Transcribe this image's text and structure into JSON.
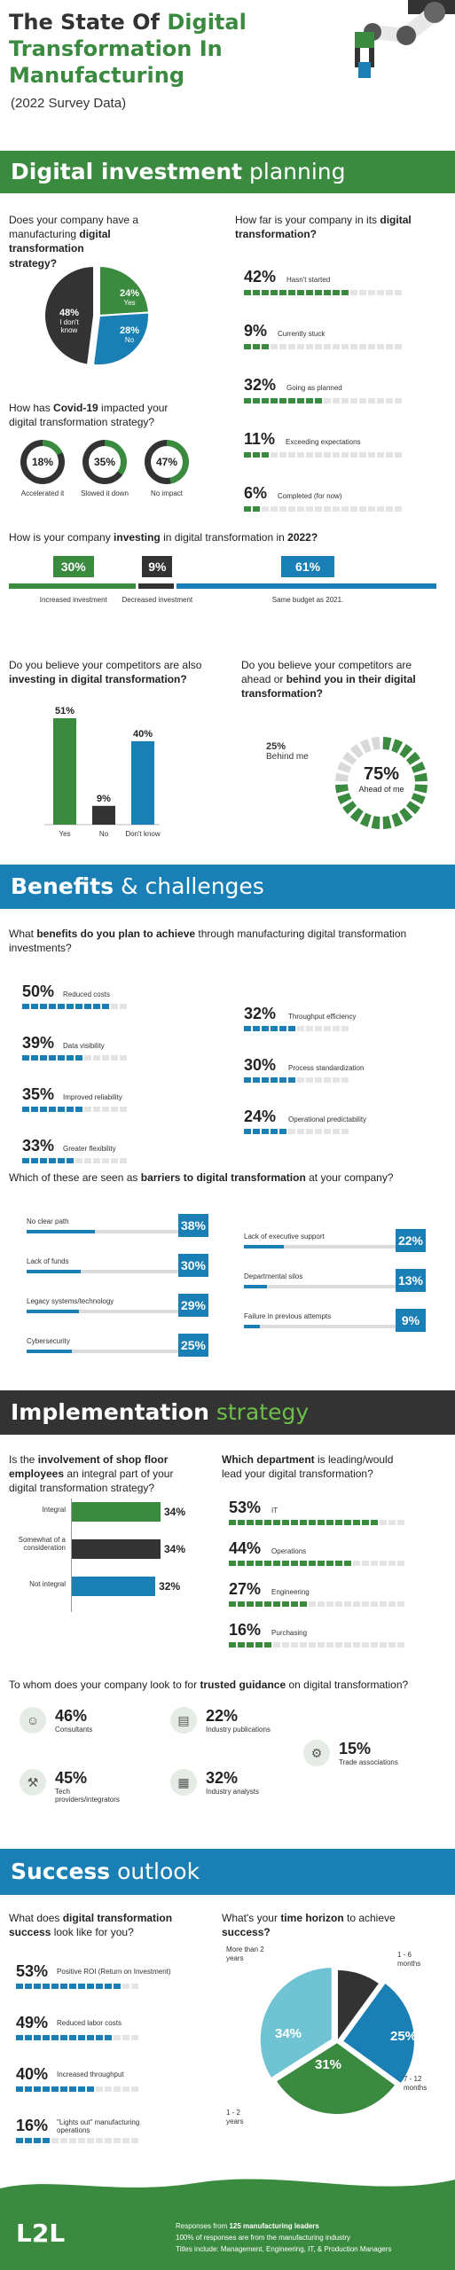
{
  "header": {
    "title_part1": "The State Of ",
    "title_part2": "Digital",
    "title_line2": "Transformation In",
    "title_line3": "Manufacturing",
    "subtitle": "(2022 Survey Data)"
  },
  "sections": {
    "s1_bold": "Digital investment",
    "s1_rest": " planning",
    "s2_bold": "Benefits",
    "s2_rest": " & challenges",
    "s3_bold": "Implementation",
    "s3_rest": " strategy",
    "s4_bold": "Success",
    "s4_rest": " outlook"
  },
  "strategy": {
    "q1": "Does your company have a",
    "q2": "manufacturing ",
    "q2b": "digital transformation",
    "q3": "strategy?",
    "slices": [
      {
        "pct": "24%",
        "label": "Yes",
        "value": 24,
        "color": "#3a8a3f"
      },
      {
        "pct": "28%",
        "label": "No",
        "value": 28,
        "color": "#1a7fb5"
      },
      {
        "pct": "48%",
        "label": "I don't know",
        "value": 48,
        "color": "#333333"
      }
    ]
  },
  "progress": {
    "q1": "How far is your company in its ",
    "q1b": "digital",
    "q2b": "transformation?",
    "items": [
      {
        "pct": "42%",
        "label": "Hasn't started",
        "value": 42
      },
      {
        "pct": "9%",
        "label": "Currently stuck",
        "value": 9
      },
      {
        "pct": "32%",
        "label": "Going as planned",
        "value": 32
      },
      {
        "pct": "11%",
        "label": "Exceeding expectations",
        "value": 11
      },
      {
        "pct": "6%",
        "label": "Completed (for now)",
        "value": 6
      }
    ]
  },
  "covid": {
    "q1": "How has ",
    "q1b": "Covid-19",
    "q1c": " impacted your",
    "q2": "digital transformation strategy?",
    "items": [
      {
        "pct": "18%",
        "label": "Accelerated it",
        "value": 18
      },
      {
        "pct": "35%",
        "label": "Slowed it down",
        "value": 35
      },
      {
        "pct": "47%",
        "label": "No impact",
        "value": 47
      }
    ]
  },
  "investing": {
    "q1": "How is your company ",
    "q1b": "investing",
    "q1c": " in digital transformation in ",
    "q1d": "2022?",
    "items": [
      {
        "pct": "30%",
        "label": "Increased investment",
        "value": 30,
        "color": "#3a8a3f"
      },
      {
        "pct": "9%",
        "label": "Decreased investment",
        "value": 9,
        "color": "#333333"
      },
      {
        "pct": "61%",
        "label": "Same budget as 2021.",
        "value": 61,
        "color": "#1a7fb5"
      }
    ]
  },
  "competitors_invest": {
    "q1": "Do you believe your competitors are also",
    "q2b": "investing in digital transformation?",
    "bars": [
      {
        "pct": "51%",
        "label": "Yes",
        "value": 51,
        "color": "#3a8a3f"
      },
      {
        "pct": "9%",
        "label": "No",
        "value": 9,
        "color": "#333333"
      },
      {
        "pct": "40%",
        "label": "Don't know",
        "value": 40,
        "color": "#1a7fb5"
      }
    ]
  },
  "competitors_ahead": {
    "q1": "Do you believe your competitors are",
    "q2": "ahead or ",
    "q2b": "behind you in their digital",
    "q3b": "transformation?",
    "behind_pct": "25%",
    "behind_label": "Behind  me",
    "behind_value": 25,
    "ahead_pct": "75%",
    "ahead_label": "Ahead of me",
    "ahead_value": 75
  },
  "benefits": {
    "q1": "What ",
    "q1b": "benefits do you plan to achieve",
    "q1c": " through manufacturing digital transformation",
    "q2": "investments?",
    "left": [
      {
        "pct": "50%",
        "label": "Reduced costs",
        "value": 50
      },
      {
        "pct": "39%",
        "label": "Data visibility",
        "value": 39
      },
      {
        "pct": "35%",
        "label": "Improved reliability",
        "value": 35
      },
      {
        "pct": "33%",
        "label": "Greater flexibility",
        "value": 33
      }
    ],
    "right": [
      {
        "pct": "32%",
        "label": "Throughput efficiency",
        "value": 32
      },
      {
        "pct": "30%",
        "label": "Process standardization",
        "value": 30
      },
      {
        "pct": "24%",
        "label": "Operational predictability",
        "value": 24
      }
    ]
  },
  "barriers": {
    "q1": "Which of these are seen as ",
    "q1b": "barriers to digital transformation",
    "q1c": " at your company?",
    "left": [
      {
        "pct": "38%",
        "label": "No clear path",
        "value": 38
      },
      {
        "pct": "30%",
        "label": "Lack of funds",
        "value": 30
      },
      {
        "pct": "29%",
        "label": "Legacy systems/technology",
        "value": 29
      },
      {
        "pct": "25%",
        "label": "Cybersecurity",
        "value": 25
      }
    ],
    "right": [
      {
        "pct": "22%",
        "label": "Lack of executive support",
        "value": 22
      },
      {
        "pct": "13%",
        "label": "Departmental silos",
        "value": 13
      },
      {
        "pct": "9%",
        "label": "Failure in previous attempts",
        "value": 9
      }
    ]
  },
  "shopfloor": {
    "q1": "Is the ",
    "q1b": "involvement of shop floor",
    "q2b": "employees",
    "q2c": " an integral part of your",
    "q3": "digital transformation strategy?",
    "bars": [
      {
        "pct": "34%",
        "label": "Integral",
        "value": 34,
        "color": "#3a8a3f"
      },
      {
        "pct": "34%",
        "label": "Somewhat of a consideration",
        "value": 34,
        "color": "#333333"
      },
      {
        "pct": "32%",
        "label": "Not integral",
        "value": 32,
        "color": "#1a7fb5"
      }
    ]
  },
  "department": {
    "q1b": "Which department",
    "q1c": " is leading/would",
    "q2": "lead your digital transformation?",
    "items": [
      {
        "pct": "53%",
        "label": "IT",
        "value": 53
      },
      {
        "pct": "44%",
        "label": "Operations",
        "value": 44
      },
      {
        "pct": "27%",
        "label": "Engineering",
        "value": 27
      },
      {
        "pct": "16%",
        "label": "Purchasing",
        "value": 16
      }
    ]
  },
  "guidance": {
    "q1": "To whom does your company look to for ",
    "q1b": "trusted guidance",
    "q1c": " on digital transformation?",
    "items": [
      {
        "pct": "46%",
        "label": "Consultants",
        "icon": "consultants-icon",
        "glyph": "☺"
      },
      {
        "pct": "22%",
        "label": "Industry publications",
        "icon": "publications-icon",
        "glyph": "▤"
      },
      {
        "pct": "15%",
        "label": "Trade associations",
        "icon": "associations-icon",
        "glyph": "⚙"
      },
      {
        "pct": "45%",
        "label": "Tech providers/integrators",
        "icon": "tech-providers-icon",
        "glyph": "⚒"
      },
      {
        "pct": "32%",
        "label": "Industry analysts",
        "icon": "analysts-icon",
        "glyph": "▦"
      }
    ]
  },
  "success": {
    "q1": "What does ",
    "q1b": "digital transformation",
    "q2b": "success",
    "q2c": " look like for you?",
    "items": [
      {
        "pct": "53%",
        "label": "Positive ROI (Return on Investment)",
        "value": 53
      },
      {
        "pct": "49%",
        "label": "Reduced labor costs",
        "value": 49
      },
      {
        "pct": "40%",
        "label": "Increased throughput",
        "value": 40
      },
      {
        "pct": "16%",
        "label": "\"Lights out\" manufacturing operations",
        "value": 16
      }
    ]
  },
  "horizon": {
    "q1": "What's your ",
    "q1b": "time horizon",
    "q1c": " to achieve",
    "q2b": "success?",
    "slices": [
      {
        "pct": "10%",
        "label": "1 - 6 months",
        "value": 10,
        "color": "#333333"
      },
      {
        "pct": "25%",
        "label": "7 - 12 months",
        "value": 25,
        "color": "#1a7fb5"
      },
      {
        "pct": "31%",
        "label": "1 - 2 years",
        "value": 31,
        "color": "#3a8a3f"
      },
      {
        "pct": "34%",
        "label": "More than 2 years",
        "value": 34,
        "color": "#6fc3d3"
      }
    ]
  },
  "footer": {
    "logo": "L2L",
    "line1a": "Responses from ",
    "line1b": "125 manufacturing leaders",
    "line2": "100% of responses are from the manufacturing industry",
    "line3": "Titles include: Management, Engineering, IT, & Production Managers"
  },
  "colors": {
    "green": "#3a8a3f",
    "blue": "#1a7fb5",
    "dark": "#333333",
    "light_blue": "#6fc3d3"
  }
}
